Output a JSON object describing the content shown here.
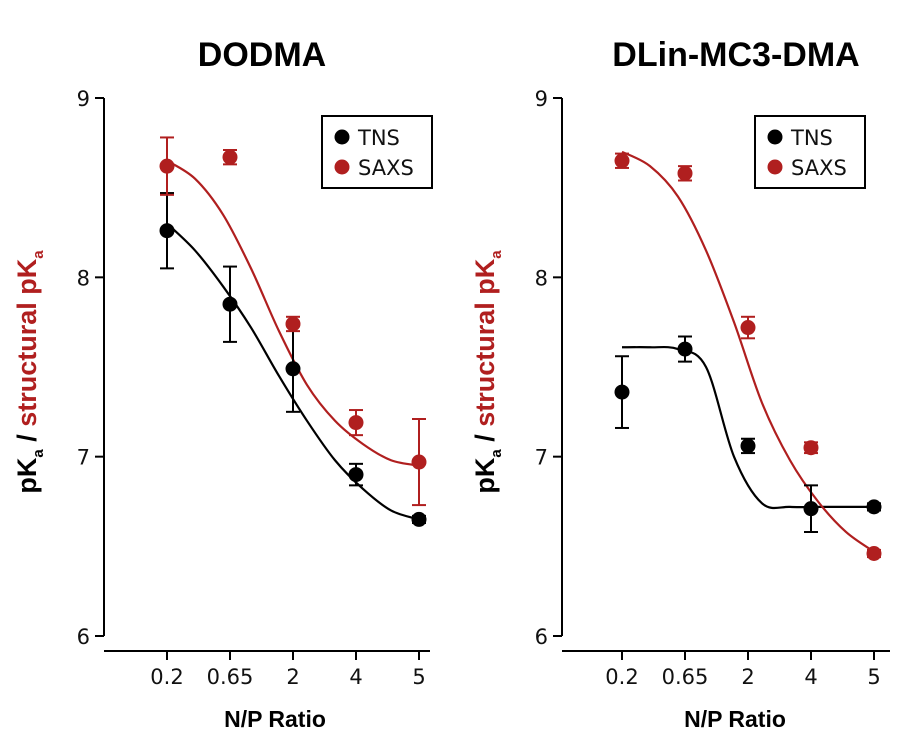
{
  "chart_data": [
    {
      "type": "scatter",
      "title": "DODMA",
      "xlabel": "N/P Ratio",
      "ylabel_black": "pK",
      "ylabel_black_sub": "a",
      "ylabel_sep": " / ",
      "ylabel_red": "structural pK",
      "ylabel_red_sub": "a",
      "ylim": [
        6,
        9
      ],
      "yticks": [
        "6",
        "7",
        "8",
        "9"
      ],
      "categories": [
        "0.2",
        "0.65",
        "2",
        "4",
        "5"
      ],
      "legend_position": "top-right",
      "series": [
        {
          "name": "TNS",
          "color": "#000000",
          "values": [
            8.26,
            7.85,
            7.49,
            6.9,
            6.65
          ],
          "errors": [
            0.21,
            0.21,
            0.24,
            0.06,
            0.02
          ],
          "fit": [
            8.3,
            8.15,
            7.95,
            7.72,
            7.45,
            7.2,
            6.98,
            6.82,
            6.7,
            6.65
          ]
        },
        {
          "name": "SAXS",
          "color": "#b01f1f",
          "values": [
            8.62,
            8.67,
            7.74,
            7.19,
            6.97
          ],
          "errors": [
            0.16,
            0.04,
            0.04,
            0.07,
            0.24
          ],
          "fit": [
            8.65,
            8.55,
            8.35,
            8.05,
            7.7,
            7.4,
            7.2,
            7.07,
            6.98,
            6.95
          ]
        }
      ]
    },
    {
      "type": "scatter",
      "title": "DLin-MC3-DMA",
      "xlabel": "N/P Ratio",
      "ylabel_black": "pK",
      "ylabel_black_sub": "a",
      "ylabel_sep": " / ",
      "ylabel_red": "structural pK",
      "ylabel_red_sub": "a",
      "ylim": [
        6,
        9
      ],
      "yticks": [
        "6",
        "7",
        "8",
        "9"
      ],
      "categories": [
        "0.2",
        "0.65",
        "2",
        "4",
        "5"
      ],
      "legend_position": "top-right",
      "series": [
        {
          "name": "TNS",
          "color": "#000000",
          "values": [
            7.36,
            7.6,
            7.06,
            6.71,
            6.72
          ],
          "errors": [
            0.2,
            0.07,
            0.04,
            0.13,
            0.02
          ],
          "fit": [
            7.61,
            7.61,
            7.6,
            7.5,
            7.0,
            6.74,
            6.72,
            6.72,
            6.72,
            6.72
          ]
        },
        {
          "name": "SAXS",
          "color": "#b01f1f",
          "values": [
            8.65,
            8.58,
            7.72,
            7.05,
            6.46
          ],
          "errors": [
            0.04,
            0.04,
            0.06,
            0.03,
            0.02
          ],
          "fit": [
            8.7,
            8.62,
            8.45,
            8.15,
            7.75,
            7.3,
            6.98,
            6.75,
            6.58,
            6.47
          ]
        }
      ]
    }
  ]
}
